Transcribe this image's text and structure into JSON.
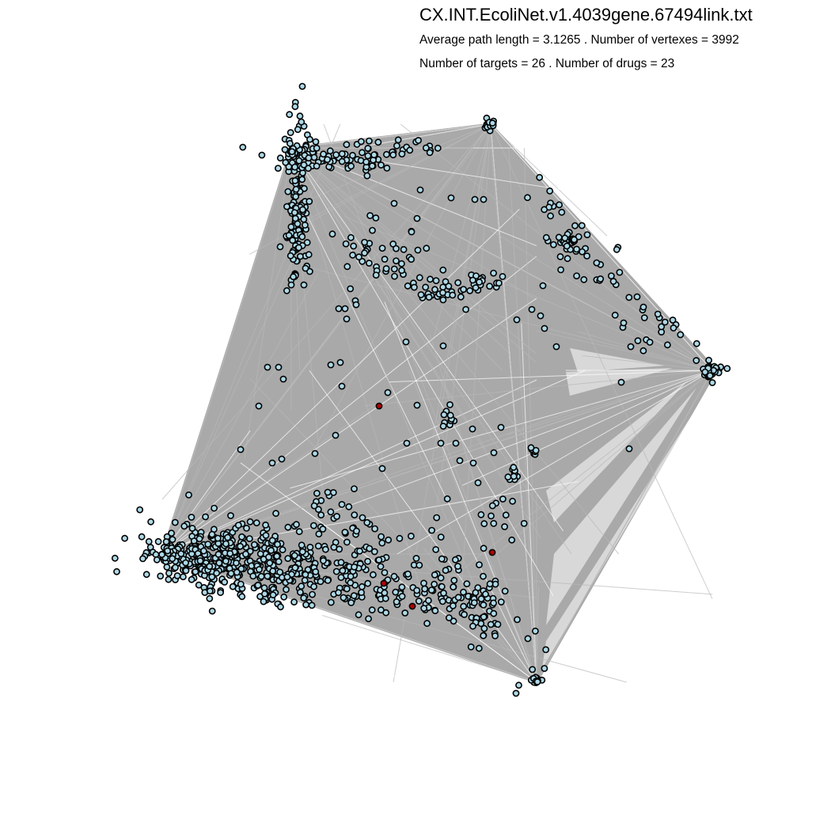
{
  "header": {
    "title": "CX.INT.EcoliNet.v1.4039gene.67494link.txt",
    "line1": "Average path length = 3.1265 . Number of vertexes = 3992",
    "line2": "Number of targets = 26 . Number of drugs = 23"
  },
  "colors": {
    "background": "#ffffff",
    "edge": "#a9a9a9",
    "node_fill": "#add8e6",
    "node_stroke": "#000000",
    "target_node_fill": "#b30000"
  }
}
